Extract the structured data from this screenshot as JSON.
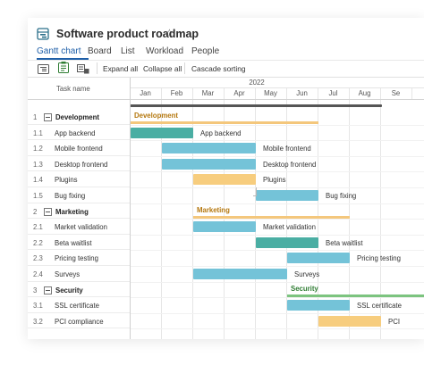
{
  "app": {
    "title": "Software product roadmap"
  },
  "tabs": [
    "Gantt chart",
    "Board",
    "List",
    "Workload",
    "People"
  ],
  "toolbar": {
    "expand_all": "Expand all",
    "collapse_all": "Collapse all",
    "cascade_sorting": "Cascade sorting"
  },
  "grid": {
    "task_name_header": "Task name",
    "year": "2022",
    "months": [
      "Jan",
      "Feb",
      "Mar",
      "Apr",
      "May",
      "Jun",
      "Jul",
      "Aug",
      "Se"
    ]
  },
  "rows": [
    {
      "num": "1",
      "name": "Development",
      "group": true
    },
    {
      "num": "1.1",
      "name": "App backend"
    },
    {
      "num": "1.2",
      "name": "Mobile frontend"
    },
    {
      "num": "1.3",
      "name": "Desktop frontend"
    },
    {
      "num": "1.4",
      "name": "Plugins"
    },
    {
      "num": "1.5",
      "name": "Bug fixing"
    },
    {
      "num": "2",
      "name": "Marketing",
      "group": true
    },
    {
      "num": "2.1",
      "name": "Market validation"
    },
    {
      "num": "2.2",
      "name": "Beta waitlist"
    },
    {
      "num": "2.3",
      "name": "Pricing testing"
    },
    {
      "num": "2.4",
      "name": "Surveys"
    },
    {
      "num": "3",
      "name": "Security",
      "group": true
    },
    {
      "num": "3.1",
      "name": "SSL certificate"
    },
    {
      "num": "3.2",
      "name": "PCI compliance"
    }
  ],
  "bars": [
    {
      "label": "Development",
      "kind": "group",
      "color": "#f4c77c",
      "label_color": "#b5780f"
    },
    {
      "label": "App backend",
      "kind": "task",
      "color": "#4aaea3"
    },
    {
      "label": "Mobile frontend",
      "kind": "task",
      "color": "#74c3d8"
    },
    {
      "label": "Desktop frontend",
      "kind": "task",
      "color": "#74c3d8"
    },
    {
      "label": "Plugins",
      "kind": "task",
      "color": "#f7cd7e"
    },
    {
      "label": "Bug fixing",
      "kind": "task",
      "color": "#74c3d8"
    },
    {
      "label": "Marketing",
      "kind": "group",
      "color": "#f4c77c",
      "label_color": "#b5780f"
    },
    {
      "label": "Market validation",
      "kind": "task",
      "color": "#74c3d8"
    },
    {
      "label": "Beta waitlist",
      "kind": "task",
      "color": "#4aaea3"
    },
    {
      "label": "Pricing testing",
      "kind": "task",
      "color": "#74c3d8"
    },
    {
      "label": "Surveys",
      "kind": "task",
      "color": "#74c3d8"
    },
    {
      "label": "Security",
      "kind": "group",
      "color": "#7cc47f",
      "label_color": "#2f7d33"
    },
    {
      "label": "SSL certificate",
      "kind": "task",
      "color": "#74c3d8"
    },
    {
      "label": "PCI",
      "kind": "task",
      "color": "#f7cd7e"
    }
  ],
  "colors": {
    "accent": "#1f5fa8",
    "teal": "#4aaea3",
    "blue": "#74c3d8",
    "yellow": "#f7cd7e",
    "green": "#7cc47f"
  }
}
